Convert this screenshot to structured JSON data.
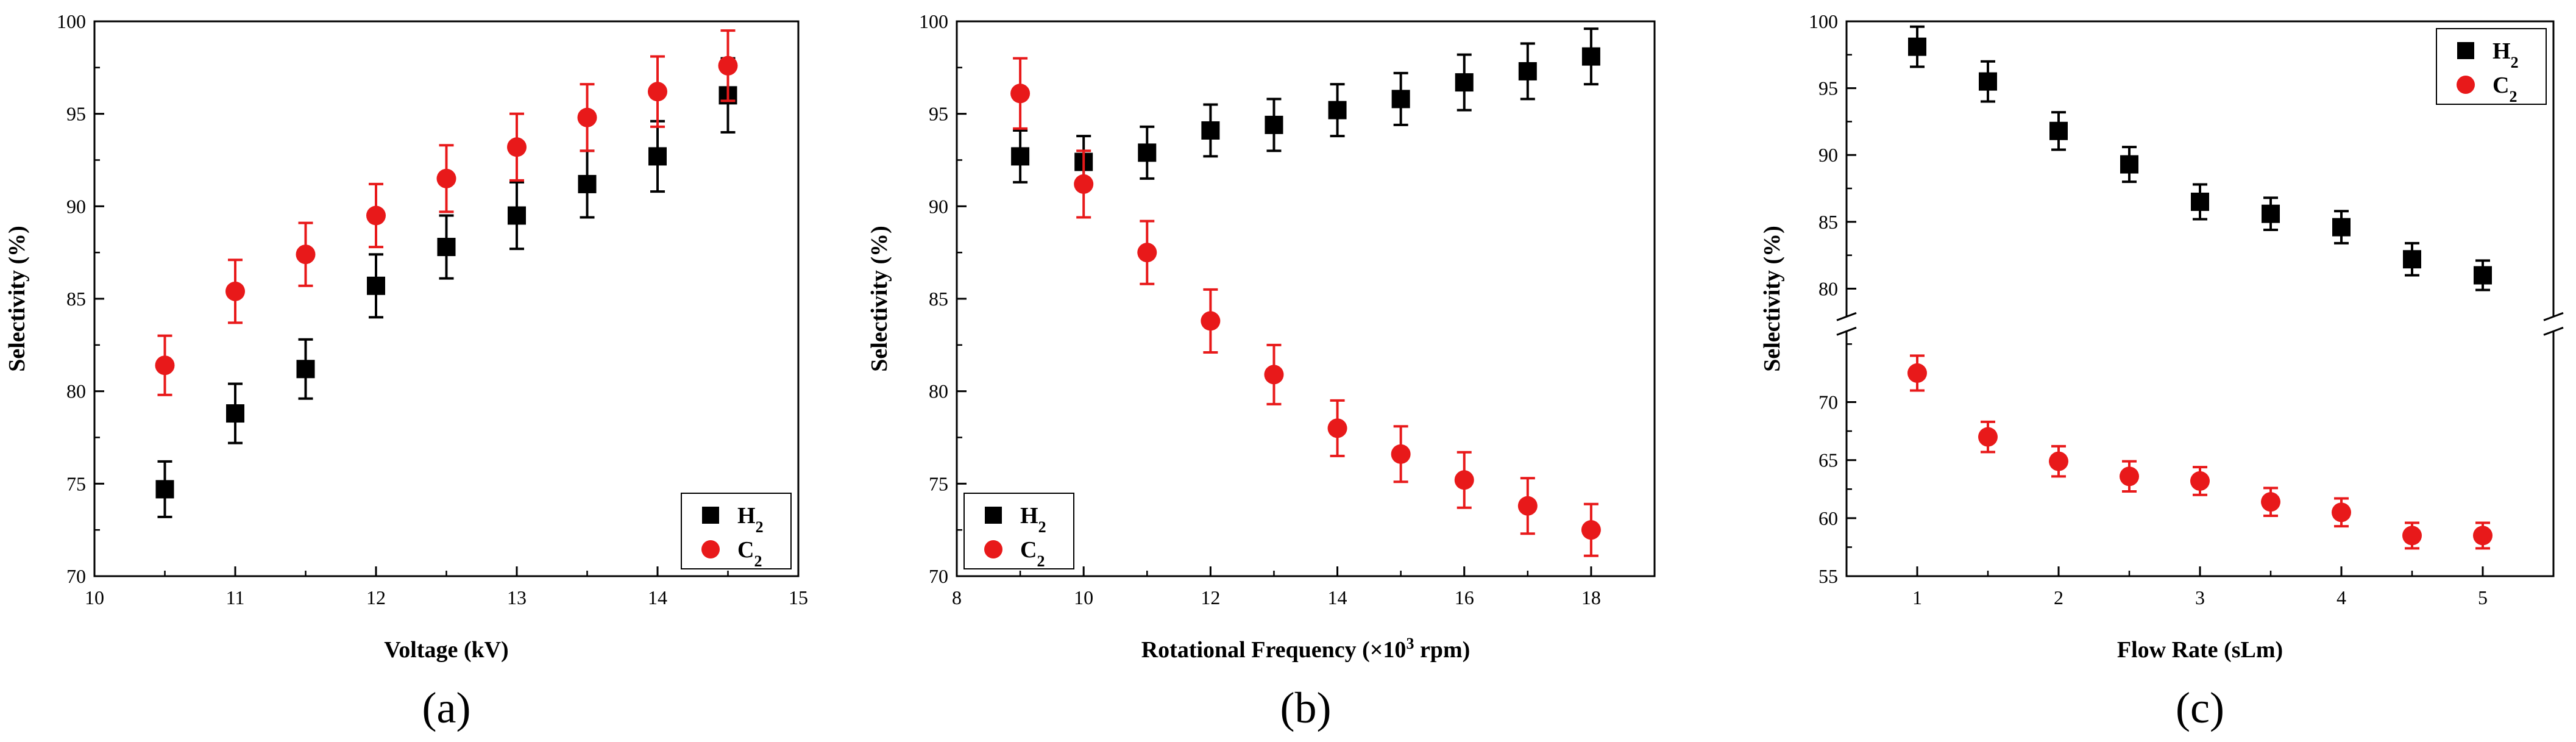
{
  "colors": {
    "h2": "#000000",
    "c2": "#e8191a"
  },
  "chart_data": [
    {
      "type": "scatter",
      "panel_label": "(a)",
      "xlabel": "Voltage (kV)",
      "ylabel": "Selectivity (%)",
      "xlim": [
        10,
        15
      ],
      "ylim": [
        70,
        100
      ],
      "xticks": [
        "10",
        "11",
        "12",
        "13",
        "14",
        "15"
      ],
      "yticks": [
        "70",
        "75",
        "80",
        "85",
        "90",
        "95",
        "100"
      ],
      "legend_position": "bottom-right",
      "series": [
        {
          "name": "H2",
          "marker": "square",
          "x": [
            10.5,
            11,
            11.5,
            12,
            12.5,
            13,
            13.5,
            14,
            14.5
          ],
          "y": [
            74.7,
            78.8,
            81.2,
            85.7,
            87.8,
            89.5,
            91.2,
            92.7,
            96.0
          ],
          "err": [
            1.5,
            1.6,
            1.6,
            1.7,
            1.7,
            1.8,
            1.8,
            1.9,
            2.0
          ]
        },
        {
          "name": "C2",
          "marker": "circle",
          "x": [
            10.5,
            11,
            11.5,
            12,
            12.5,
            13,
            13.5,
            14,
            14.5
          ],
          "y": [
            81.4,
            85.4,
            87.4,
            89.5,
            91.5,
            93.2,
            94.8,
            96.2,
            97.6
          ],
          "err": [
            1.6,
            1.7,
            1.7,
            1.7,
            1.8,
            1.8,
            1.8,
            1.9,
            1.9
          ]
        }
      ]
    },
    {
      "type": "scatter",
      "panel_label": "(b)",
      "xlabel": "Rotational Frequency (×10³ rpm)",
      "ylabel": "Selectivity (%)",
      "xlim": [
        8,
        19
      ],
      "ylim": [
        70,
        100
      ],
      "xticks": [
        "8",
        "10",
        "12",
        "14",
        "16",
        "18"
      ],
      "yticks": [
        "70",
        "75",
        "80",
        "85",
        "90",
        "95",
        "100"
      ],
      "legend_position": "bottom-left",
      "series": [
        {
          "name": "H2",
          "marker": "square",
          "x": [
            9,
            10,
            11,
            12,
            13,
            14,
            15,
            16,
            17,
            18
          ],
          "y": [
            92.7,
            92.4,
            92.9,
            94.1,
            94.4,
            95.2,
            95.8,
            96.7,
            97.3,
            98.1
          ],
          "err": [
            1.4,
            1.4,
            1.4,
            1.4,
            1.4,
            1.4,
            1.4,
            1.5,
            1.5,
            1.5
          ]
        },
        {
          "name": "C2",
          "marker": "circle",
          "x": [
            9,
            10,
            11,
            12,
            13,
            14,
            15,
            16,
            17,
            18
          ],
          "y": [
            96.1,
            91.2,
            87.5,
            83.8,
            80.9,
            78.0,
            76.6,
            75.2,
            73.8,
            72.5
          ],
          "err": [
            1.9,
            1.8,
            1.7,
            1.7,
            1.6,
            1.5,
            1.5,
            1.5,
            1.5,
            1.4
          ]
        }
      ]
    },
    {
      "type": "scatter",
      "panel_label": "(c)",
      "xlabel": "Flow Rate (sLm)",
      "ylabel": "Selectivity (%)",
      "xlim": [
        0.5,
        5.5
      ],
      "ylim": [
        55,
        100
      ],
      "axis_break": [
        76,
        78
      ],
      "xticks": [
        "1",
        "2",
        "3",
        "4",
        "5"
      ],
      "yticks": [
        "55",
        "60",
        "65",
        "70",
        "80",
        "85",
        "90",
        "95",
        "100"
      ],
      "legend_position": "top-right",
      "series": [
        {
          "name": "H2",
          "marker": "square",
          "x": [
            1,
            1.5,
            2,
            2.5,
            3,
            3.5,
            4,
            4.5,
            5
          ],
          "y": [
            98.1,
            95.5,
            91.8,
            89.3,
            86.5,
            85.6,
            84.6,
            82.2,
            81.0
          ],
          "err": [
            1.5,
            1.5,
            1.4,
            1.3,
            1.3,
            1.2,
            1.2,
            1.2,
            1.1
          ]
        },
        {
          "name": "C2",
          "marker": "circle",
          "x": [
            1,
            1.5,
            2,
            2.5,
            3,
            3.5,
            4,
            4.5,
            5
          ],
          "y": [
            72.5,
            67.0,
            64.9,
            63.6,
            63.2,
            61.4,
            60.5,
            58.5,
            58.5
          ],
          "err": [
            1.5,
            1.3,
            1.3,
            1.3,
            1.2,
            1.2,
            1.2,
            1.1,
            1.1
          ]
        }
      ]
    }
  ]
}
